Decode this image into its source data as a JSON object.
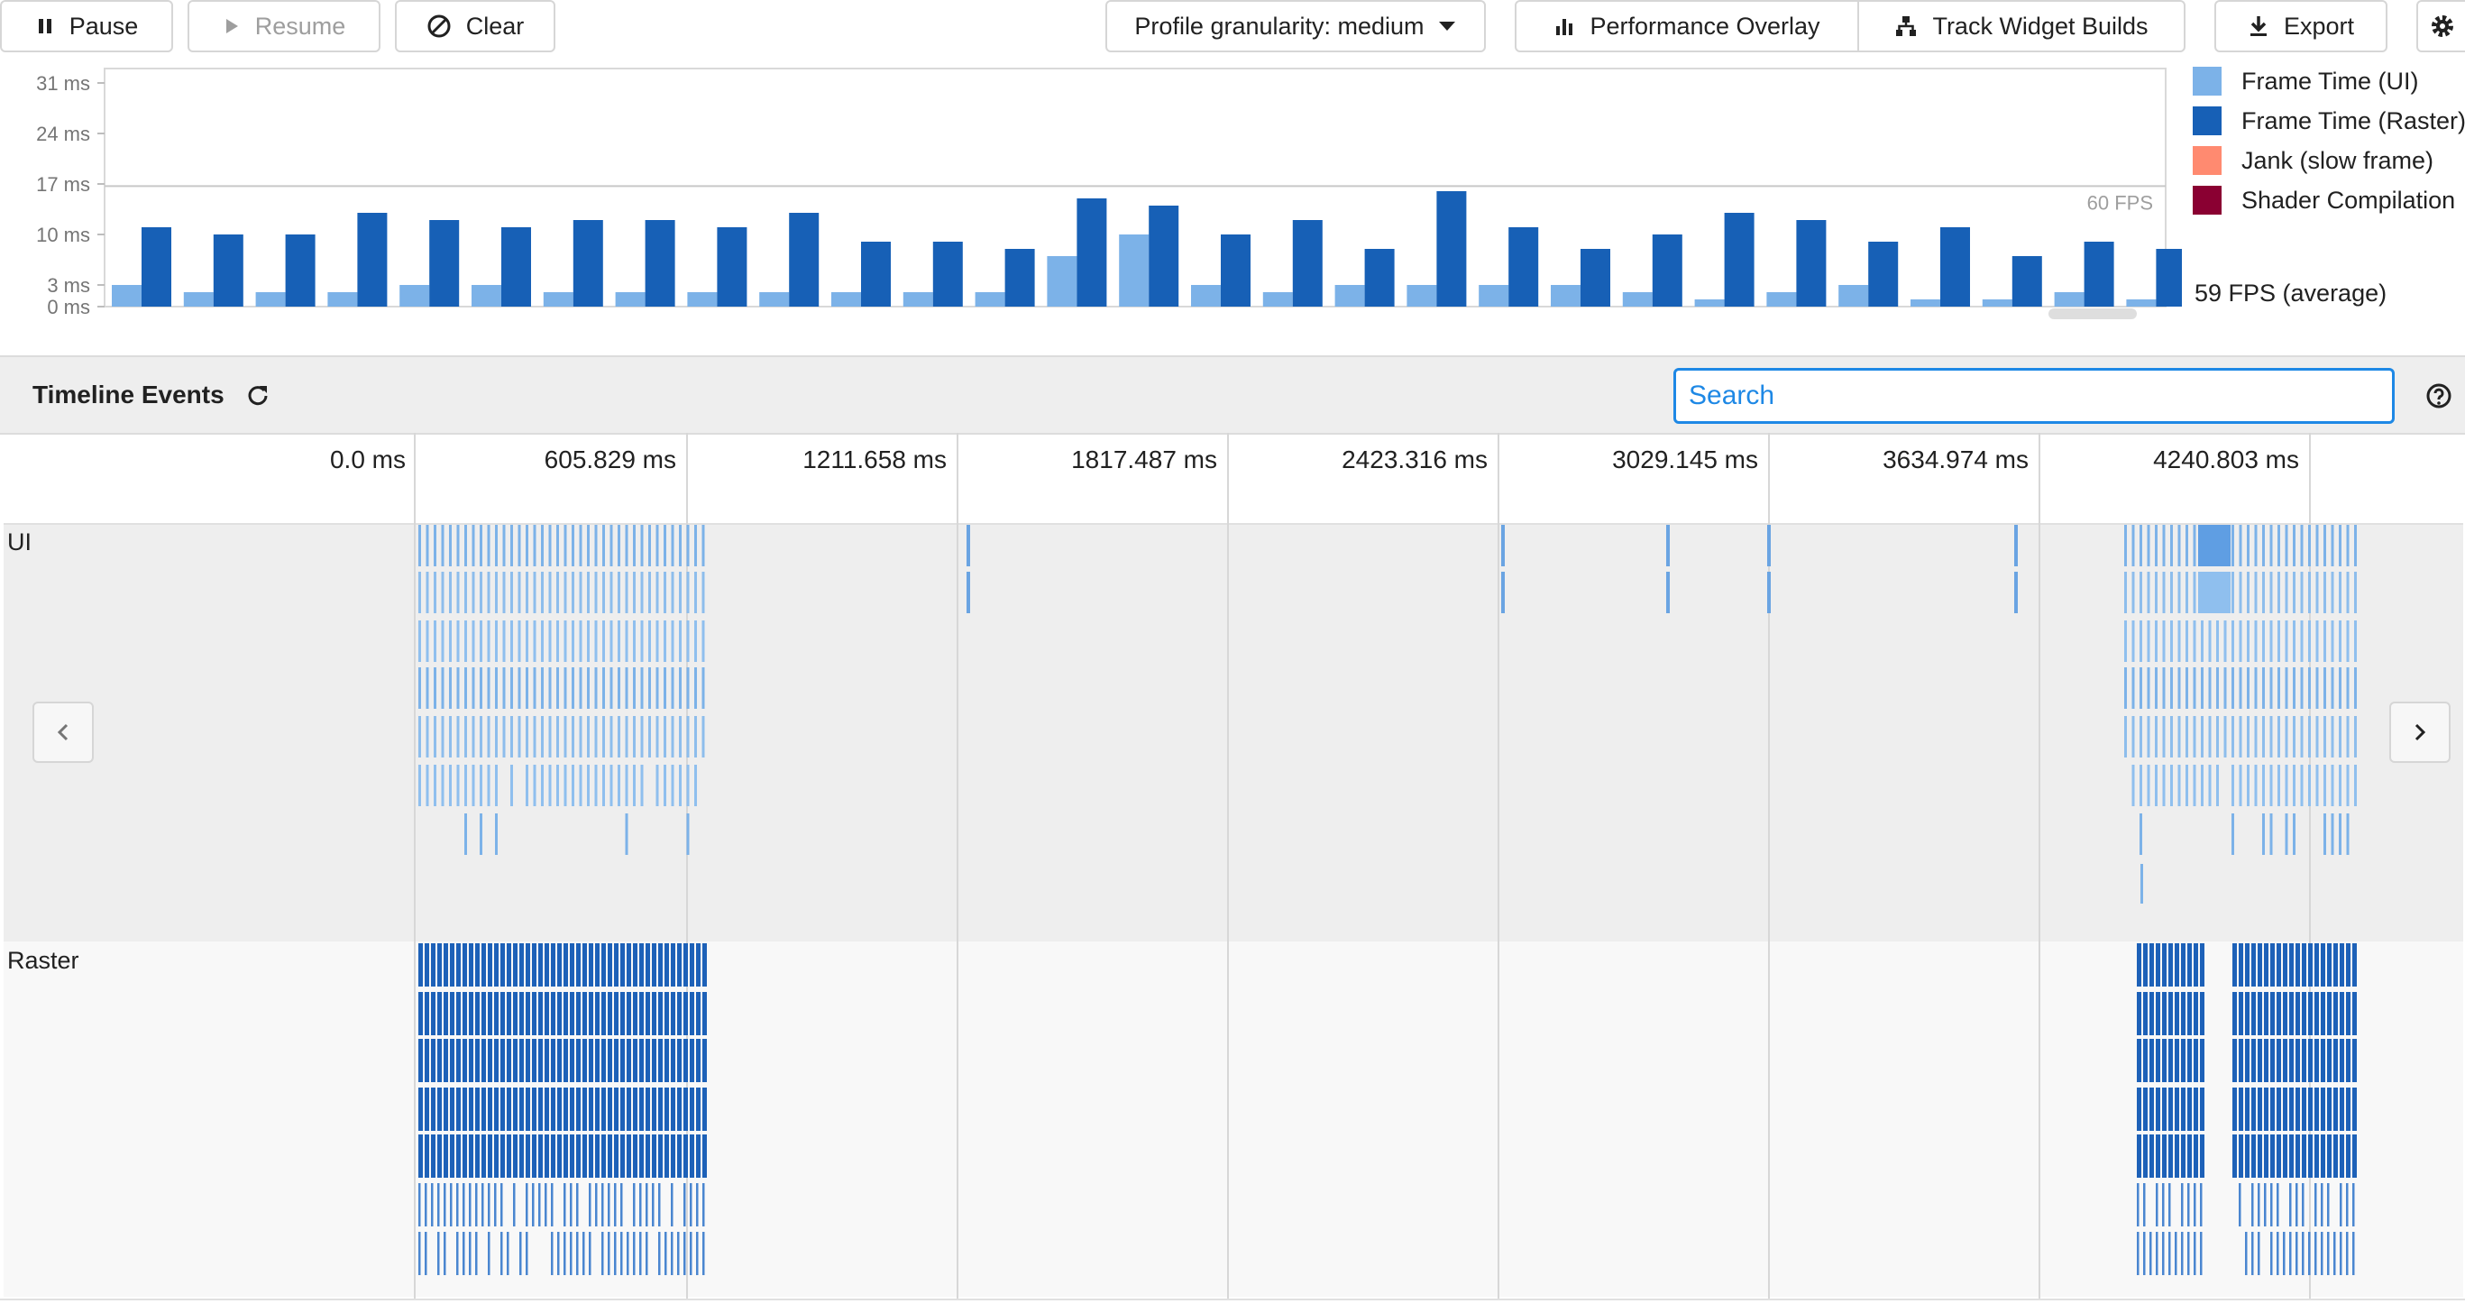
{
  "toolbar": {
    "pause_label": "Pause",
    "resume_label": "Resume",
    "clear_label": "Clear",
    "granularity_label": "Profile granularity: medium",
    "overlay_label": "Performance Overlay",
    "track_label": "Track Widget Builds",
    "export_label": "Export"
  },
  "frame_chart": {
    "y_ticks": [
      "31 ms",
      "24 ms",
      "17 ms",
      "10 ms",
      "3 ms",
      "0 ms"
    ],
    "fps_line_label": "60 FPS",
    "legend": [
      {
        "label": "Frame Time (UI)",
        "color": "#7cb2e8"
      },
      {
        "label": "Frame Time (Raster)",
        "color": "#1760b6"
      },
      {
        "label": "Jank (slow frame)",
        "color": "#ff8a70"
      },
      {
        "label": "Shader Compilation",
        "color": "#8a0032"
      }
    ],
    "average_fps": "59 FPS (average)"
  },
  "chart_data": {
    "type": "bar",
    "ylim": [
      0,
      33
    ],
    "y_tick_values": [
      0,
      3,
      10,
      17,
      24,
      31
    ],
    "series": [
      {
        "name": "Frame Time (UI)",
        "values": [
          3,
          2,
          2,
          2,
          3,
          3,
          2,
          2,
          2,
          2,
          2,
          2,
          2,
          7,
          10,
          3,
          2,
          3,
          3,
          3,
          3,
          2,
          1,
          2,
          3,
          1,
          1,
          2,
          1
        ]
      },
      {
        "name": "Frame Time (Raster)",
        "values": [
          11,
          10,
          10,
          13,
          12,
          11,
          12,
          12,
          11,
          13,
          9,
          9,
          8,
          15,
          14,
          10,
          12,
          8,
          16,
          11,
          8,
          10,
          13,
          12,
          9,
          11,
          7,
          9,
          8
        ]
      }
    ]
  },
  "timeline": {
    "title": "Timeline Events",
    "search_placeholder": "Search",
    "ticks": [
      "0.0 ms",
      "605.829 ms",
      "1211.658 ms",
      "1817.487 ms",
      "2423.316 ms",
      "3029.145 ms",
      "3634.974 ms",
      "4240.803 ms"
    ],
    "lanes": {
      "ui": "UI",
      "raster": "Raster"
    }
  }
}
